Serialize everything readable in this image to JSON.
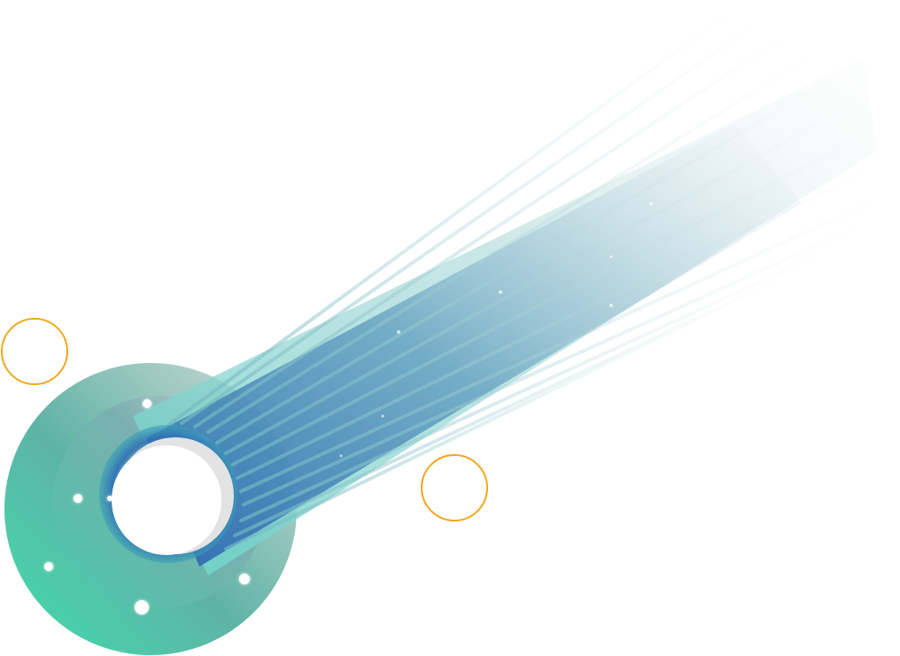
{
  "illustration": {
    "subject": "comet-ring-illustration",
    "palette": {
      "ring_teal": "#3fd9ae",
      "ring_mid": "#5db8a4",
      "ring_gray": "#c9cdd0",
      "beam_blue": "#2f6fb6",
      "beam_teal": "#7fd8d0",
      "beam_fade": "#e8ecee",
      "hole_white": "#ffffff",
      "hole_shadow": "#e4e4e4",
      "orbit_orange": "#f0a81c",
      "dot_white": "#ffffff"
    }
  }
}
